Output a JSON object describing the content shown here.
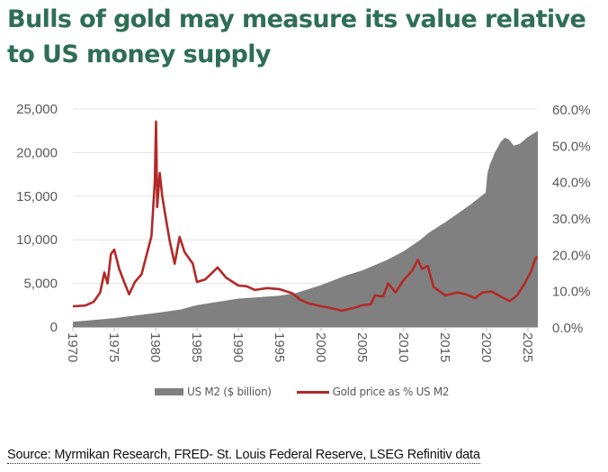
{
  "title": "Bulls of gold may measure its value relative to US money supply",
  "source": "Source: Myrmikan Research, FRED- St. Louis Federal Reserve, LSEG Refinitiv data",
  "chart_data": {
    "type": "area+line",
    "title": "Bulls of gold may measure its value relative to US money supply",
    "xlim": [
      1970,
      2026.2
    ],
    "x_ticks": [
      "1970",
      "1975",
      "1980",
      "1985",
      "1990",
      "1995",
      "2000",
      "2005",
      "2010",
      "2015",
      "2020",
      "2025"
    ],
    "y_left": {
      "lim": [
        0,
        25000
      ],
      "ticks": [
        "0",
        "5,000",
        "10,000",
        "15,000",
        "20,000",
        "25,000"
      ]
    },
    "y_right": {
      "lim": [
        0,
        60
      ],
      "ticks": [
        "0.0%",
        "10.0%",
        "20.0%",
        "30.0%",
        "40.0%",
        "50.0%",
        "60.0%"
      ]
    },
    "grid": true,
    "legend_position": "bottom",
    "series": [
      {
        "name": "US M2 ($ billion)",
        "type": "area",
        "axis": "left",
        "color": "#808080",
        "x": [
          1970,
          1975,
          1980,
          1983,
          1985,
          1988,
          1990,
          1993,
          1995,
          1997,
          2000,
          2003,
          2005,
          2008,
          2010,
          2012,
          2013,
          2015,
          2018,
          2019.9,
          2020.1,
          2020.4,
          2021,
          2021.7,
          2022.2,
          2022.7,
          2023.3,
          2024,
          2025,
          2026.2
        ],
        "y": [
          600,
          1000,
          1600,
          2000,
          2500,
          2950,
          3250,
          3450,
          3600,
          3900,
          4800,
          5900,
          6500,
          7700,
          8700,
          10000,
          10800,
          12000,
          14000,
          15400,
          17600,
          18600,
          20000,
          21200,
          21700,
          21500,
          20800,
          21000,
          21800,
          22500
        ]
      },
      {
        "name": "Gold price as % US M2",
        "type": "line",
        "axis": "right",
        "color": "#b22a27",
        "x": [
          1970,
          1971.5,
          1972.5,
          1973.3,
          1973.8,
          1974.2,
          1974.6,
          1975,
          1975.6,
          1976.2,
          1976.8,
          1977.5,
          1978.3,
          1979,
          1979.5,
          1979.9,
          1980.05,
          1980.2,
          1980.5,
          1980.8,
          1981.2,
          1981.7,
          1982.3,
          1982.9,
          1983.5,
          1984.5,
          1985,
          1986,
          1987.5,
          1988.5,
          1990,
          1991,
          1992,
          1993.5,
          1995,
          1996.5,
          1997.5,
          1998.5,
          2000,
          2001,
          2002.5,
          2003.9,
          2005,
          2006,
          2006.5,
          2007.5,
          2008.1,
          2009,
          2009.9,
          2011,
          2011.7,
          2012.2,
          2012.9,
          2013.6,
          2015,
          2016.5,
          2017.5,
          2018.6,
          2019.5,
          2020.6,
          2021.7,
          2022.8,
          2023.7,
          2024.6,
          2025.3,
          2025.9,
          2026.1
        ],
        "y": [
          5.7,
          5.9,
          6.9,
          9.5,
          15,
          12,
          20,
          21.3,
          16,
          12.4,
          9,
          12.4,
          14.5,
          20.6,
          25,
          40,
          56.5,
          33,
          42.4,
          36,
          30.5,
          23.8,
          17.4,
          24.8,
          20.6,
          17.4,
          12.4,
          13.1,
          16.4,
          13.6,
          11.4,
          11.2,
          10.2,
          10.7,
          10.4,
          9.3,
          7.5,
          6.5,
          5.7,
          5.3,
          4.5,
          5.2,
          6.0,
          6.2,
          8.7,
          8.4,
          12,
          9.5,
          12.7,
          15.5,
          18.5,
          16,
          16.8,
          11,
          8.7,
          9.5,
          9,
          7.9,
          9.5,
          9.8,
          8.4,
          7.1,
          8.7,
          12,
          14.9,
          18.7,
          19.5
        ]
      }
    ]
  }
}
